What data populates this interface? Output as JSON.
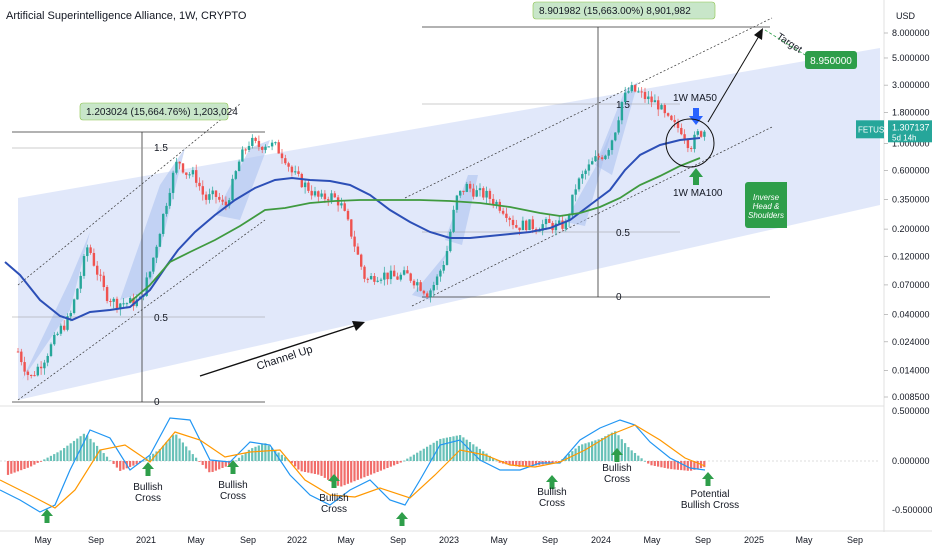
{
  "chart_data": {
    "type": "candlestick",
    "title": "Artificial Superintelligence Alliance, 1W, CRYPTO",
    "symbol": "FETUSD",
    "currency": "USD",
    "last_price": "1.307137",
    "countdown": "5d 14h",
    "y_ticks": [
      "8.000000",
      "5.000000",
      "3.000000",
      "1.800000",
      "1.000000",
      "0.600000",
      "0.350000",
      "0.200000",
      "0.120000",
      "0.070000",
      "0.040000",
      "0.024000",
      "0.014000",
      "0.008500"
    ],
    "osc_ticks": [
      "0.500000",
      "0.000000",
      "-0.500000"
    ],
    "x_ticks": [
      "May",
      "Sep",
      "2021",
      "May",
      "Sep",
      "2022",
      "May",
      "Sep",
      "2023",
      "May",
      "Sep",
      "2024",
      "May",
      "Sep",
      "2025",
      "May",
      "Sep"
    ],
    "target_value": "8.950000",
    "target_label": "Target",
    "measure_1": "1.203024 (15,664.76%) 1,203,024",
    "measure_2": "8.901982 (15,663.00%) 8,901,982",
    "fib_levels": [
      "1.5",
      "0.5",
      "0"
    ],
    "series": [
      {
        "name": "1W MA50",
        "color": "#2c4fb7"
      },
      {
        "name": "1W MA100",
        "color": "#3f9a3f"
      }
    ],
    "annotations": {
      "channel": "Channel Up",
      "pattern": [
        "Inverse",
        "Head &",
        "Shoulders"
      ],
      "ma50": "1W MA50",
      "ma100": "1W MA100"
    },
    "osc_labels": [
      [
        "Bullish",
        "Cross"
      ],
      [
        "Bullish",
        "Cross"
      ],
      [
        "Bullish",
        "Cross"
      ],
      [
        "Bullish",
        "Cross"
      ],
      [
        "Bullish",
        "Cross"
      ],
      [
        "Potential",
        "Bullish Cross"
      ]
    ],
    "colors": {
      "up": "#26a69a",
      "down": "#ef5350",
      "ma50": "#2c4fb7",
      "ma100": "#3f9a3f",
      "channel": "#c9d6f5",
      "accent": "#2e9e4a",
      "macd": "#2196f3",
      "signal": "#ff9800"
    }
  }
}
